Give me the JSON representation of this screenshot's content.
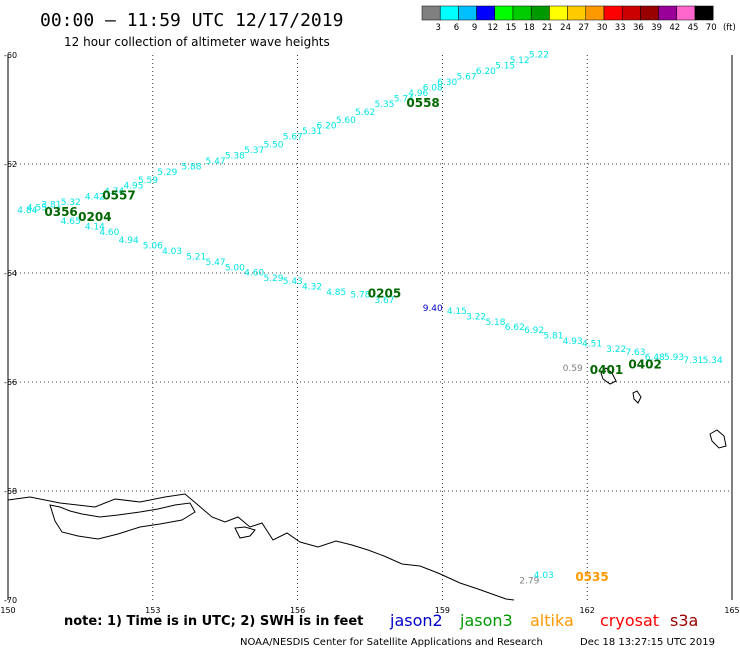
{
  "header": {
    "title": "00:00 – 11:59 UTC 12/17/2019",
    "subtitle": "12 hour collection of altimeter wave heights"
  },
  "colorbar": {
    "colors": [
      "#808080",
      "#00ffff",
      "#00bfff",
      "#0000ff",
      "#00ff00",
      "#00cc00",
      "#009900",
      "#ffff00",
      "#ffcc00",
      "#ff9900",
      "#ff0000",
      "#cc0000",
      "#990000",
      "#990099",
      "#ff66cc",
      "#000000"
    ],
    "labels": [
      "3",
      "6",
      "9",
      "12",
      "15",
      "18",
      "21",
      "24",
      "27",
      "30",
      "33",
      "36",
      "39",
      "42",
      "45",
      "70",
      "(ft)"
    ]
  },
  "axes": {
    "lon_labels": [
      "150",
      "153",
      "156",
      "159",
      "162",
      "165"
    ],
    "lat_labels": [
      "60",
      "62",
      "64",
      "66",
      "68",
      "70"
    ],
    "lon_range": [
      150,
      165
    ],
    "lat_range": [
      60,
      70
    ],
    "grid": true
  },
  "tracks": [
    {
      "color": "#00e5e5",
      "points": [
        {
          "lon": 150.4,
          "lat": 62.9,
          "label": "4.84"
        },
        {
          "lon": 150.6,
          "lat": 62.85,
          "label": "4.55"
        },
        {
          "lon": 150.9,
          "lat": 62.8,
          "label": "3.81"
        },
        {
          "lon": 151.3,
          "lat": 62.75,
          "label": "5.32"
        },
        {
          "lon": 151.8,
          "lat": 62.65,
          "label": "4.42"
        },
        {
          "lon": 152.2,
          "lat": 62.55,
          "label": "4.74"
        },
        {
          "lon": 152.6,
          "lat": 62.45,
          "label": "4.95"
        },
        {
          "lon": 152.9,
          "lat": 62.35,
          "label": "5.59"
        },
        {
          "lon": 153.3,
          "lat": 62.2,
          "label": "5.29"
        },
        {
          "lon": 153.8,
          "lat": 62.1,
          "label": "5.88"
        },
        {
          "lon": 154.3,
          "lat": 62.0,
          "label": "5.47"
        },
        {
          "lon": 154.7,
          "lat": 61.9,
          "label": "5.38"
        },
        {
          "lon": 155.1,
          "lat": 61.8,
          "label": "5.37"
        },
        {
          "lon": 155.5,
          "lat": 61.7,
          "label": "5.50"
        },
        {
          "lon": 155.9,
          "lat": 61.55,
          "label": "5.67"
        },
        {
          "lon": 156.3,
          "lat": 61.45,
          "label": "5.31"
        },
        {
          "lon": 156.6,
          "lat": 61.35,
          "label": "6.20"
        },
        {
          "lon": 157.0,
          "lat": 61.25,
          "label": "5.60"
        },
        {
          "lon": 157.4,
          "lat": 61.1,
          "label": "5.62"
        },
        {
          "lon": 157.8,
          "lat": 60.95,
          "label": "5.35"
        },
        {
          "lon": 158.2,
          "lat": 60.85,
          "label": "5.74"
        },
        {
          "lon": 158.5,
          "lat": 60.75,
          "label": "4.96"
        },
        {
          "lon": 158.8,
          "lat": 60.65,
          "label": "6.08"
        },
        {
          "lon": 159.1,
          "lat": 60.55,
          "label": "6.30"
        },
        {
          "lon": 159.5,
          "lat": 60.45,
          "label": "5.67"
        },
        {
          "lon": 159.9,
          "lat": 60.35,
          "label": "6.20"
        },
        {
          "lon": 160.3,
          "lat": 60.25,
          "label": "5.15"
        },
        {
          "lon": 160.6,
          "lat": 60.15,
          "label": "5.12"
        },
        {
          "lon": 161.0,
          "lat": 60.05,
          "label": "5.22"
        }
      ]
    },
    {
      "color": "#00e5e5",
      "points": [
        {
          "lon": 151.3,
          "lat": 63.1,
          "label": "4.65"
        },
        {
          "lon": 151.8,
          "lat": 63.2,
          "label": "4.14"
        },
        {
          "lon": 152.1,
          "lat": 63.3,
          "label": "4.60"
        },
        {
          "lon": 152.5,
          "lat": 63.45,
          "label": "4.94"
        },
        {
          "lon": 153.0,
          "lat": 63.55,
          "label": "5.06"
        },
        {
          "lon": 153.4,
          "lat": 63.65,
          "label": "4.03"
        },
        {
          "lon": 153.9,
          "lat": 63.75,
          "label": "5.21"
        },
        {
          "lon": 154.3,
          "lat": 63.85,
          "label": "5.47"
        },
        {
          "lon": 154.7,
          "lat": 63.95,
          "label": "5.00"
        },
        {
          "lon": 155.1,
          "lat": 64.05,
          "label": "4.60"
        },
        {
          "lon": 155.5,
          "lat": 64.15,
          "label": "5.29"
        },
        {
          "lon": 155.9,
          "lat": 64.2,
          "label": "5.43"
        },
        {
          "lon": 156.3,
          "lat": 64.3,
          "label": "4.32"
        },
        {
          "lon": 156.8,
          "lat": 64.4,
          "label": "4.85"
        },
        {
          "lon": 157.3,
          "lat": 64.45,
          "label": "5.78"
        },
        {
          "lon": 157.8,
          "lat": 64.55,
          "label": "3.67"
        },
        {
          "lon": 159.3,
          "lat": 64.75,
          "label": "4.15"
        },
        {
          "lon": 159.7,
          "lat": 64.85,
          "label": "3.22"
        },
        {
          "lon": 160.1,
          "lat": 64.95,
          "label": "5.18"
        },
        {
          "lon": 160.5,
          "lat": 65.05,
          "label": "6.62"
        },
        {
          "lon": 160.9,
          "lat": 65.1,
          "label": "6.92"
        },
        {
          "lon": 161.3,
          "lat": 65.2,
          "label": "5.81"
        },
        {
          "lon": 161.7,
          "lat": 65.3,
          "label": "4.93"
        },
        {
          "lon": 162.1,
          "lat": 65.35,
          "label": "4.51"
        },
        {
          "lon": 162.6,
          "lat": 65.45,
          "label": "3.22"
        },
        {
          "lon": 163.0,
          "lat": 65.5,
          "label": "7.63"
        },
        {
          "lon": 163.4,
          "lat": 65.6,
          "label": "6.48"
        },
        {
          "lon": 163.8,
          "lat": 65.6,
          "label": "5.93"
        },
        {
          "lon": 164.2,
          "lat": 65.65,
          "label": "7.31"
        },
        {
          "lon": 164.6,
          "lat": 65.65,
          "label": "5.34"
        }
      ]
    },
    {
      "color": "#0000cc",
      "points": [
        {
          "lon": 158.8,
          "lat": 64.7,
          "label": "9.40"
        }
      ]
    },
    {
      "color": "#808080",
      "points": [
        {
          "lon": 161.7,
          "lat": 65.8,
          "label": "0.59"
        },
        {
          "lon": 160.8,
          "lat": 69.7,
          "label": "2.79"
        }
      ]
    },
    {
      "color": "#00e5e5",
      "points": [
        {
          "lon": 161.1,
          "lat": 69.6,
          "label": "4.03"
        }
      ]
    }
  ],
  "pass_times": [
    {
      "lon": 151.1,
      "lat": 62.95,
      "label": "0356",
      "color": "#006600"
    },
    {
      "lon": 151.8,
      "lat": 63.05,
      "label": "0204",
      "color": "#006600"
    },
    {
      "lon": 152.3,
      "lat": 62.65,
      "label": "0557",
      "color": "#006600"
    },
    {
      "lon": 158.6,
      "lat": 60.95,
      "label": "0558",
      "color": "#006600"
    },
    {
      "lon": 157.8,
      "lat": 64.45,
      "label": "0205",
      "color": "#006600"
    },
    {
      "lon": 162.4,
      "lat": 65.85,
      "label": "0401",
      "color": "#006600"
    },
    {
      "lon": 163.2,
      "lat": 65.75,
      "label": "0402",
      "color": "#006600"
    },
    {
      "lon": 162.1,
      "lat": 69.65,
      "label": "0535",
      "color": "#ff9900"
    }
  ],
  "footer": {
    "note": "note: 1) Time is in UTC; 2) SWH is in feet",
    "satellites": [
      {
        "name": "jason2",
        "color": "#0000cc"
      },
      {
        "name": "jason3",
        "color": "#009900"
      },
      {
        "name": "altika",
        "color": "#ff9900"
      },
      {
        "name": "cryosat",
        "color": "#ff0000"
      },
      {
        "name": "s3a",
        "color": "#990000"
      }
    ],
    "credit": "NOAA/NESDIS Center for Satellite Applications and Research",
    "timestamp": "Dec 18 13:27:15 UTC 2019"
  }
}
